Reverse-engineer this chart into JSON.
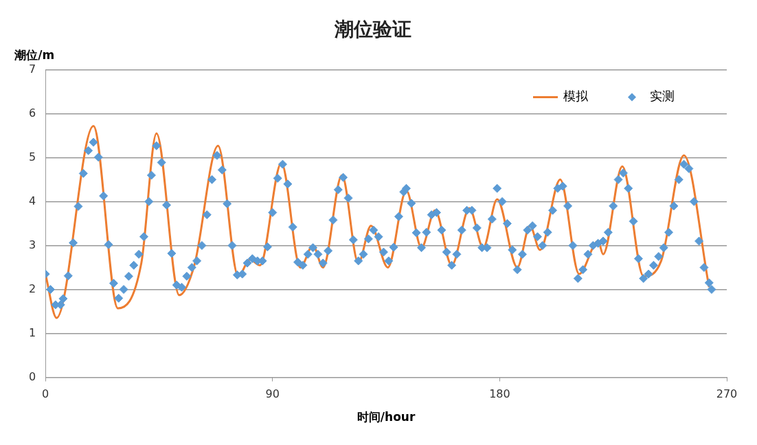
{
  "chart_data": {
    "type": "line",
    "title": "潮位验证",
    "xlabel": "时间/hour",
    "ylabel": "潮位/m",
    "xlim": [
      0,
      270
    ],
    "xticks": [
      0,
      90,
      180,
      270
    ],
    "ylim": [
      0,
      7
    ],
    "yticks": [
      0,
      1,
      2,
      3,
      4,
      5,
      6,
      7
    ],
    "grid": "y",
    "legend": "top right",
    "series": [
      {
        "name": "模拟",
        "type": "line",
        "color": "#ed7d31",
        "marker": "none",
        "x": [
          0,
          4.4,
          19,
          28.7,
          38,
          44,
          53,
          59,
          68.4,
          76.4,
          81,
          85,
          93.5,
          101,
          106,
          110,
          117.5,
          124,
          129,
          135.7,
          143,
          149,
          154.4,
          161,
          168,
          173.5,
          179,
          187,
          192,
          196,
          204,
          211.5,
          219,
          221,
          228.6,
          237,
          244,
          253,
          263
        ],
        "values": [
          2.35,
          1.35,
          5.72,
          1.57,
          2.6,
          5.55,
          1.87,
          2.55,
          5.27,
          2.3,
          2.68,
          2.55,
          4.88,
          2.5,
          3.0,
          2.5,
          4.6,
          2.6,
          3.45,
          2.5,
          4.25,
          2.95,
          3.8,
          2.55,
          3.85,
          2.95,
          4.05,
          2.5,
          3.45,
          2.9,
          4.5,
          2.35,
          3.1,
          2.8,
          4.8,
          2.3,
          2.65,
          5.05,
          2.05
        ]
      },
      {
        "name": "实测",
        "type": "scatter",
        "color": "#5b9bd5",
        "marker": "diamond",
        "x": [
          0,
          2,
          4,
          6,
          7,
          9,
          11,
          13,
          15,
          17,
          19,
          21,
          23,
          25,
          27,
          29,
          31,
          33,
          35,
          37,
          39,
          41,
          42,
          44,
          46,
          48,
          50,
          52,
          54,
          56,
          58,
          60,
          62,
          64,
          66,
          68,
          70,
          72,
          74,
          76,
          78,
          80,
          82,
          84,
          86,
          88,
          90,
          92,
          94,
          96,
          98,
          100,
          102,
          104,
          106,
          108,
          110,
          112,
          114,
          116,
          118,
          120,
          122,
          124,
          126,
          128,
          130,
          132,
          134,
          136,
          138,
          140,
          142,
          143,
          145,
          147,
          149,
          151,
          153,
          155,
          157,
          159,
          161,
          163,
          165,
          167,
          169,
          171,
          173,
          175,
          177,
          179,
          181,
          183,
          185,
          187,
          189,
          191,
          193,
          195,
          197,
          199,
          201,
          203,
          205,
          207,
          209,
          211,
          213,
          215,
          217,
          219,
          221,
          223,
          225,
          227,
          229,
          231,
          233,
          235,
          237,
          239,
          241,
          243,
          245,
          247,
          249,
          251,
          253,
          255,
          257,
          259,
          261,
          263,
          264
        ],
        "values": [
          2.35,
          2.0,
          1.65,
          1.65,
          1.79,
          2.31,
          3.06,
          3.89,
          4.64,
          5.16,
          5.35,
          5.01,
          4.13,
          3.02,
          2.14,
          1.8,
          2.0,
          2.3,
          2.55,
          2.8,
          3.2,
          4.0,
          4.6,
          5.27,
          4.89,
          3.92,
          2.82,
          2.1,
          2.05,
          2.3,
          2.5,
          2.65,
          3.0,
          3.7,
          4.5,
          5.05,
          4.72,
          3.95,
          3.0,
          2.33,
          2.35,
          2.6,
          2.7,
          2.65,
          2.65,
          2.97,
          3.75,
          4.53,
          4.85,
          4.4,
          3.42,
          2.62,
          2.55,
          2.8,
          2.95,
          2.8,
          2.6,
          2.88,
          3.58,
          4.27,
          4.55,
          4.08,
          3.13,
          2.65,
          2.8,
          3.15,
          3.35,
          3.2,
          2.85,
          2.65,
          2.96,
          3.66,
          4.22,
          4.3,
          3.96,
          3.29,
          2.95,
          3.3,
          3.7,
          3.75,
          3.35,
          2.85,
          2.55,
          2.8,
          3.35,
          3.8,
          3.8,
          3.4,
          2.95,
          2.95,
          3.6,
          4.3,
          4.0,
          3.5,
          2.9,
          2.45,
          2.8,
          3.35,
          3.45,
          3.2,
          3.0,
          3.3,
          3.8,
          4.3,
          4.35,
          3.9,
          3.0,
          2.25,
          2.45,
          2.8,
          3.0,
          3.05,
          3.1,
          3.3,
          3.9,
          4.5,
          4.65,
          4.3,
          3.55,
          2.7,
          2.25,
          2.35,
          2.55,
          2.75,
          2.95,
          3.3,
          3.9,
          4.5,
          4.85,
          4.75,
          4.0,
          3.1,
          2.5,
          2.15,
          2.0
        ]
      }
    ]
  }
}
